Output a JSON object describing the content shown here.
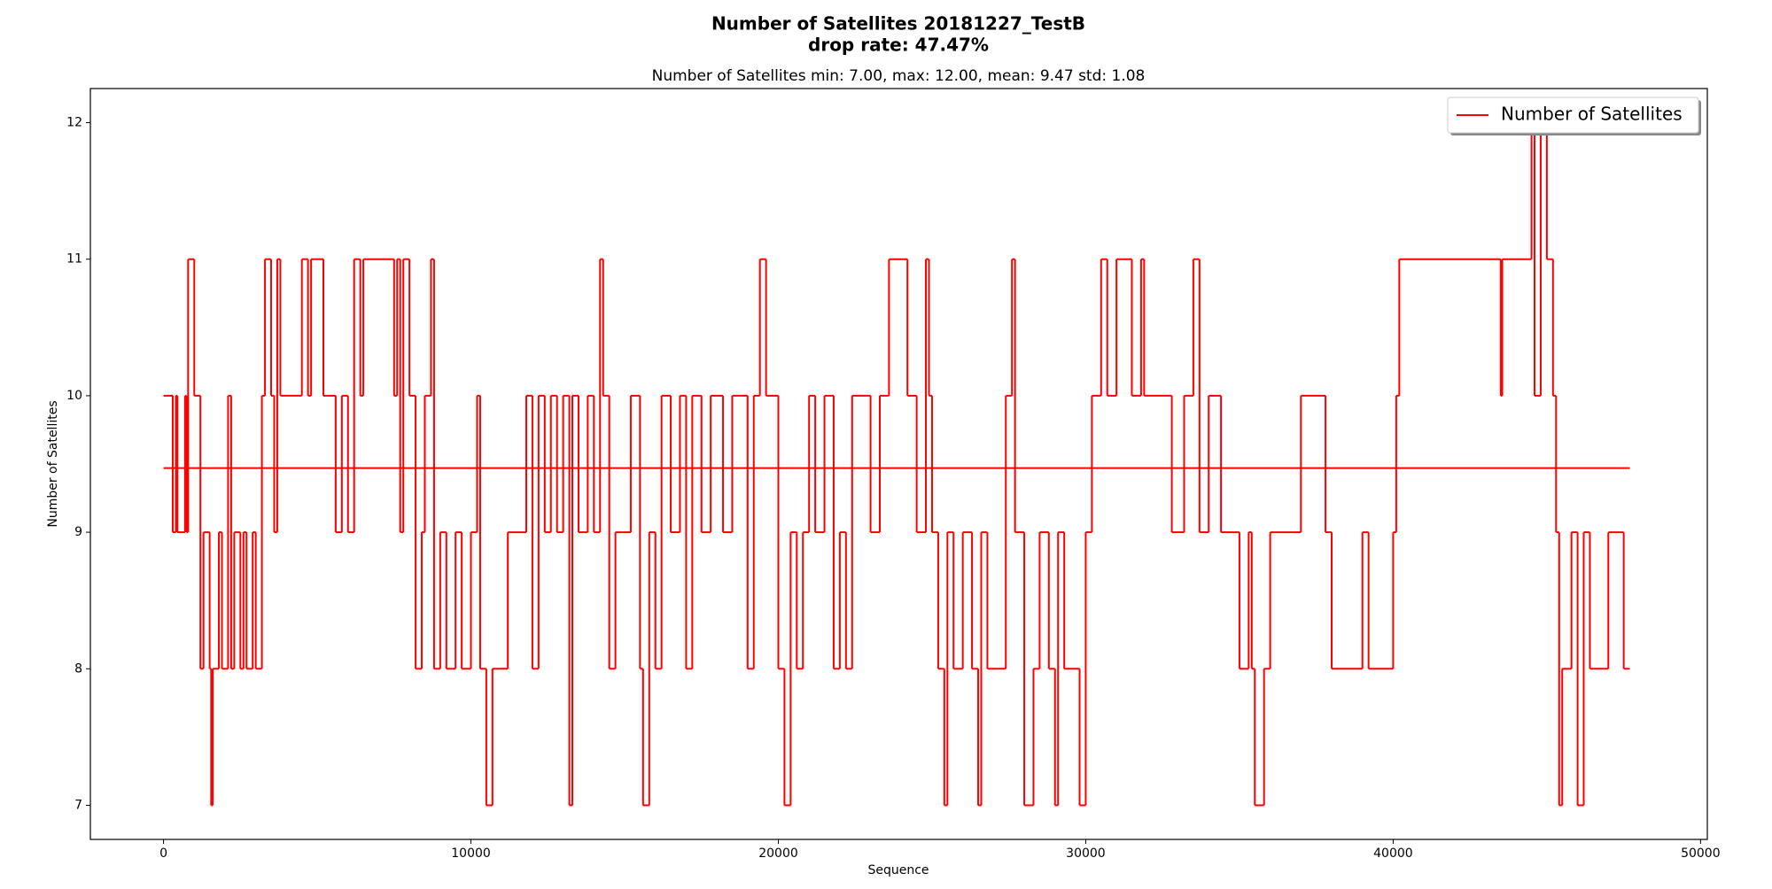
{
  "chart_data": {
    "type": "step",
    "title": "Number of Satellites 20181227_TestB",
    "subtitle": "drop rate: 47.47%",
    "annotation": "Number of Satellites min: 7.00, max: 12.00, mean: 9.47 std: 1.08",
    "x_label": "Sequence",
    "y_label": "Number of Satellites",
    "xlim": [
      -2380,
      50220
    ],
    "ylim": [
      6.75,
      12.25
    ],
    "xticks": [
      0,
      10000,
      20000,
      30000,
      40000,
      50000
    ],
    "yticks": [
      7,
      8,
      9,
      10,
      11,
      12
    ],
    "legend": "upper right",
    "series": [
      {
        "name": "Number of Satellites",
        "color": "#ff0000",
        "x": [
          0,
          300,
          400,
          450,
          700,
          750,
          800,
          1000,
          1200,
          1300,
          1500,
          1550,
          1600,
          1800,
          1900,
          2100,
          2200,
          2300,
          2500,
          2600,
          2700,
          2900,
          3000,
          3200,
          3300,
          3500,
          3600,
          3700,
          3800,
          4500,
          4700,
          4800,
          5200,
          5600,
          5800,
          6000,
          6200,
          6400,
          6500,
          7500,
          7600,
          7700,
          7800,
          8000,
          8200,
          8400,
          8500,
          8700,
          8800,
          9000,
          9200,
          9500,
          9700,
          10000,
          10200,
          10300,
          10500,
          10700,
          11200,
          11800,
          12000,
          12200,
          12400,
          12600,
          12800,
          13000,
          13200,
          13300,
          13500,
          13800,
          14000,
          14200,
          14300,
          14500,
          14700,
          15200,
          15500,
          15600,
          15800,
          16000,
          16200,
          16500,
          16800,
          17000,
          17200,
          17500,
          17800,
          18200,
          18500,
          19000,
          19200,
          19400,
          19600,
          20000,
          20200,
          20400,
          20600,
          20800,
          21000,
          21200,
          21500,
          21800,
          22000,
          22200,
          22400,
          23000,
          23300,
          23600,
          24200,
          24500,
          24800,
          24900,
          25000,
          25200,
          25400,
          25500,
          25700,
          26000,
          26300,
          26500,
          26600,
          26800,
          27400,
          27600,
          27700,
          28000,
          28300,
          28500,
          28800,
          29000,
          29100,
          29300,
          29800,
          30000,
          30200,
          30500,
          30700,
          31000,
          31500,
          31800,
          31900,
          32800,
          33200,
          33500,
          33700,
          34000,
          34400,
          35000,
          35300,
          35400,
          35500,
          35800,
          36000,
          37000,
          37800,
          38000,
          39000,
          39200,
          40000,
          40100,
          40200,
          43500,
          43550,
          44500,
          44600,
          44800,
          45000,
          45200,
          45300,
          45400,
          45500,
          45800,
          46000,
          46200,
          46400,
          47000,
          47500,
          47700
        ],
        "values": [
          10,
          9,
          10,
          9,
          10,
          9,
          11,
          10,
          8,
          9,
          8,
          7,
          8,
          9,
          8,
          10,
          8,
          9,
          8,
          9,
          8,
          9,
          8,
          10,
          11,
          10,
          9,
          11,
          10,
          11,
          10,
          11,
          10,
          9,
          10,
          9,
          11,
          10,
          11,
          10,
          11,
          9,
          11,
          10,
          8,
          9,
          10,
          11,
          8,
          9,
          8,
          9,
          8,
          9,
          10,
          8,
          7,
          8,
          9,
          10,
          8,
          10,
          9,
          10,
          9,
          10,
          7,
          10,
          9,
          10,
          9,
          11,
          10,
          8,
          9,
          10,
          8,
          7,
          9,
          8,
          10,
          9,
          10,
          8,
          10,
          9,
          10,
          9,
          10,
          8,
          10,
          11,
          10,
          8,
          7,
          9,
          8,
          9,
          10,
          9,
          10,
          8,
          9,
          8,
          10,
          9,
          10,
          11,
          10,
          9,
          11,
          10,
          9,
          8,
          7,
          9,
          8,
          9,
          8,
          7,
          9,
          8,
          10,
          11,
          9,
          7,
          8,
          9,
          8,
          7,
          9,
          8,
          7,
          9,
          10,
          11,
          10,
          11,
          10,
          11,
          10,
          9,
          10,
          11,
          9,
          10,
          9,
          8,
          9,
          8,
          7,
          8,
          9,
          10,
          9,
          8,
          9,
          8,
          9,
          10,
          11,
          10,
          11,
          12,
          10,
          12,
          11,
          10,
          9,
          7,
          8,
          9,
          7,
          9,
          8,
          9,
          8,
          8
        ]
      },
      {
        "color": "#ff0000",
        "x": [
          0,
          47700
        ],
        "values": [
          9.47,
          9.47
        ]
      }
    ]
  }
}
